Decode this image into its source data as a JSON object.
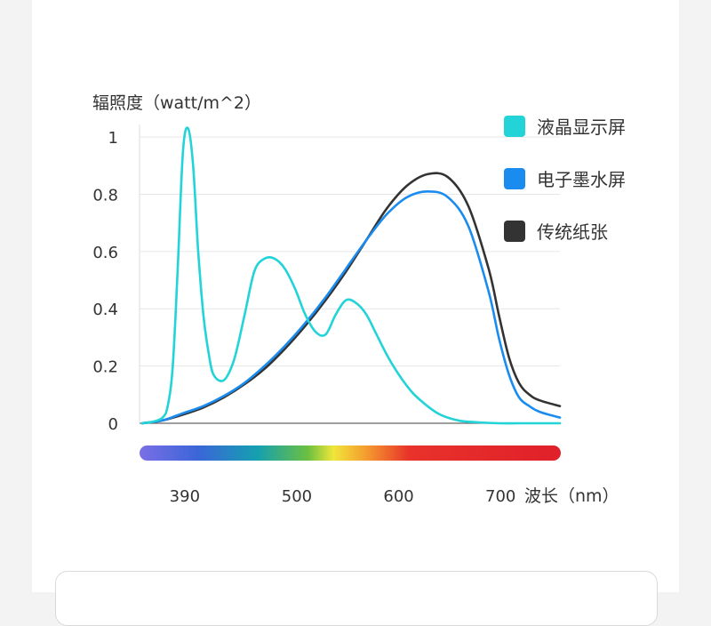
{
  "chart_data": {
    "type": "line",
    "title": "",
    "ylabel": "辐照度（watt/m^2）",
    "xlabel": "波长（nm）",
    "ylim": [
      0,
      1.05
    ],
    "xlim": [
      350,
      760
    ],
    "yticks": [
      "0",
      "0.2",
      "0.4",
      "0.6",
      "0.8",
      "1"
    ],
    "ytick_values": [
      0,
      0.2,
      0.4,
      0.6,
      0.8,
      1.0
    ],
    "xticks": [
      "390",
      "500",
      "600",
      "700"
    ],
    "xtick_values": [
      390,
      500,
      600,
      700
    ],
    "grid": "horizontal",
    "legend": "top-right",
    "spectrum_bar": true,
    "series": [
      {
        "name": "液晶显示屏",
        "color": "#22d3d8",
        "x": [
          350,
          360,
          370,
          375,
          380,
          385,
          390,
          395,
          400,
          405,
          410,
          415,
          420,
          430,
          440,
          450,
          460,
          470,
          480,
          490,
          500,
          510,
          520,
          530,
          540,
          550,
          560,
          570,
          580,
          590,
          600,
          610,
          620,
          640,
          660,
          680,
          700,
          720,
          740,
          760
        ],
        "y": [
          0.0,
          0.005,
          0.02,
          0.06,
          0.2,
          0.55,
          0.95,
          1.03,
          0.9,
          0.6,
          0.38,
          0.25,
          0.17,
          0.15,
          0.22,
          0.37,
          0.53,
          0.575,
          0.575,
          0.54,
          0.47,
          0.38,
          0.32,
          0.31,
          0.38,
          0.43,
          0.42,
          0.38,
          0.31,
          0.24,
          0.18,
          0.13,
          0.09,
          0.035,
          0.01,
          0.003,
          0.0,
          0.0,
          0.0,
          0.0
        ]
      },
      {
        "name": "电子墨水屏",
        "color": "#1a8cf0",
        "x": [
          350,
          370,
          390,
          410,
          430,
          450,
          470,
          490,
          510,
          530,
          550,
          570,
          590,
          610,
          630,
          650,
          670,
          690,
          700,
          710,
          720,
          730,
          740,
          760
        ],
        "y": [
          0.0,
          0.01,
          0.035,
          0.06,
          0.095,
          0.14,
          0.2,
          0.27,
          0.35,
          0.44,
          0.54,
          0.64,
          0.73,
          0.79,
          0.81,
          0.79,
          0.69,
          0.46,
          0.3,
          0.17,
          0.09,
          0.06,
          0.04,
          0.02
        ]
      },
      {
        "name": "传统纸张",
        "color": "#333333",
        "x": [
          350,
          370,
          390,
          410,
          430,
          450,
          470,
          490,
          510,
          530,
          550,
          570,
          590,
          610,
          630,
          650,
          670,
          690,
          700,
          710,
          720,
          730,
          740,
          760
        ],
        "y": [
          0.0,
          0.01,
          0.03,
          0.055,
          0.09,
          0.135,
          0.19,
          0.26,
          0.34,
          0.43,
          0.53,
          0.64,
          0.75,
          0.83,
          0.87,
          0.86,
          0.76,
          0.54,
          0.38,
          0.23,
          0.14,
          0.1,
          0.08,
          0.06
        ]
      }
    ]
  }
}
